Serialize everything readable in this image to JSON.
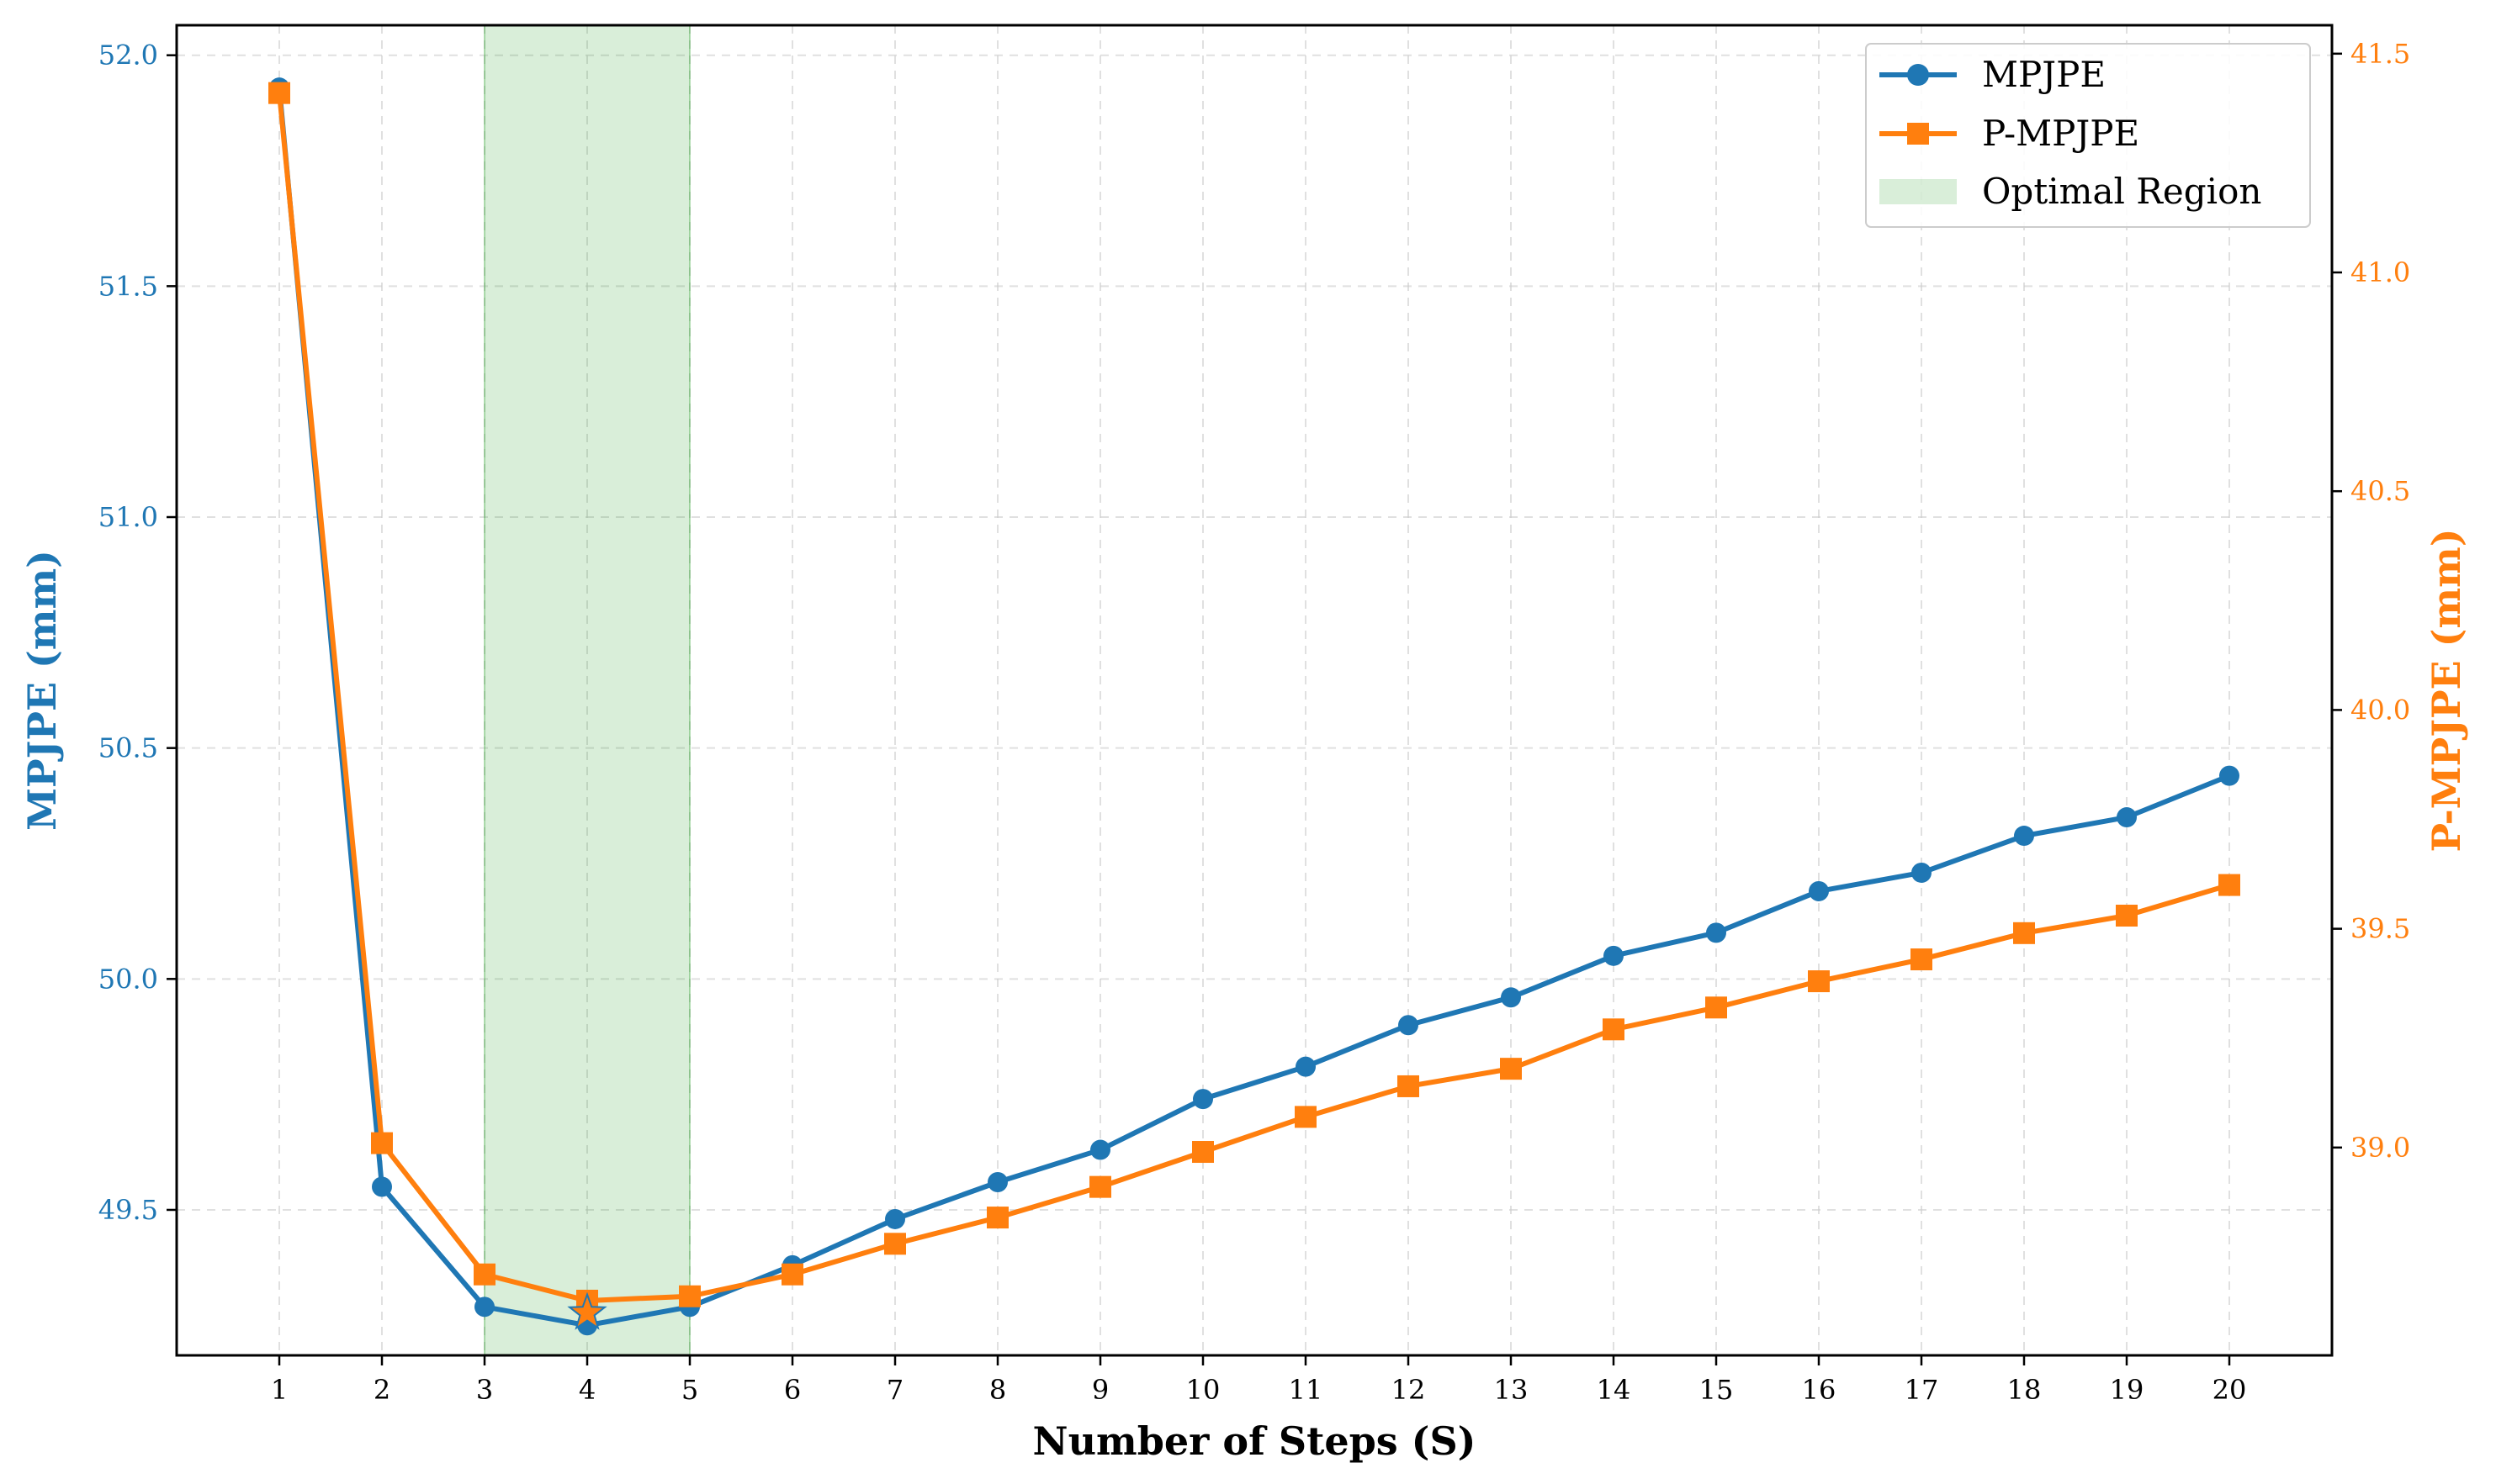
{
  "chart_data": {
    "type": "line",
    "xlabel": "Number of Steps (S)",
    "x": [
      1,
      2,
      3,
      4,
      5,
      6,
      7,
      8,
      9,
      10,
      11,
      12,
      13,
      14,
      15,
      16,
      17,
      18,
      19,
      20
    ],
    "left_axis": {
      "label": "MPJPE (mm)",
      "color": "#1f77b4",
      "ylim": [
        49.185,
        52.065
      ],
      "ticks": [
        "49.5",
        "50.0",
        "50.5",
        "51.0",
        "51.5",
        "52.0"
      ]
    },
    "right_axis": {
      "label": "P-MPJPE (mm)",
      "color": "#ff7f0e",
      "ylim": [
        38.525,
        41.565
      ],
      "ticks": [
        "39.0",
        "39.5",
        "40.0",
        "40.5",
        "41.0",
        "41.5"
      ]
    },
    "series": [
      {
        "name": "MPJPE",
        "axis": "left",
        "color": "#1f77b4",
        "marker": "circle",
        "values": [
          51.93,
          49.55,
          49.29,
          49.25,
          49.29,
          49.38,
          49.48,
          49.56,
          49.63,
          49.74,
          49.81,
          49.9,
          49.96,
          50.05,
          50.1,
          50.19,
          50.23,
          50.31,
          50.35,
          50.44
        ]
      },
      {
        "name": "P-MPJPE",
        "axis": "right",
        "color": "#ff7f0e",
        "marker": "square",
        "values": [
          41.41,
          39.01,
          38.71,
          38.65,
          38.66,
          38.71,
          38.78,
          38.84,
          38.91,
          38.99,
          39.07,
          39.14,
          39.18,
          39.27,
          39.32,
          39.38,
          39.43,
          39.49,
          39.53,
          39.6
        ]
      }
    ],
    "highlight": {
      "name": "Optimal Region",
      "x_start": 3,
      "x_end": 5,
      "color": "#2ca02c"
    },
    "best_point": {
      "x": 4,
      "mpjpe": 49.25,
      "p_mpjpe": 38.65,
      "marker": "star"
    },
    "legend": {
      "position": "top-right",
      "entries": [
        "MPJPE",
        "P-MPJPE",
        "Optimal Region"
      ]
    },
    "grid": true
  }
}
